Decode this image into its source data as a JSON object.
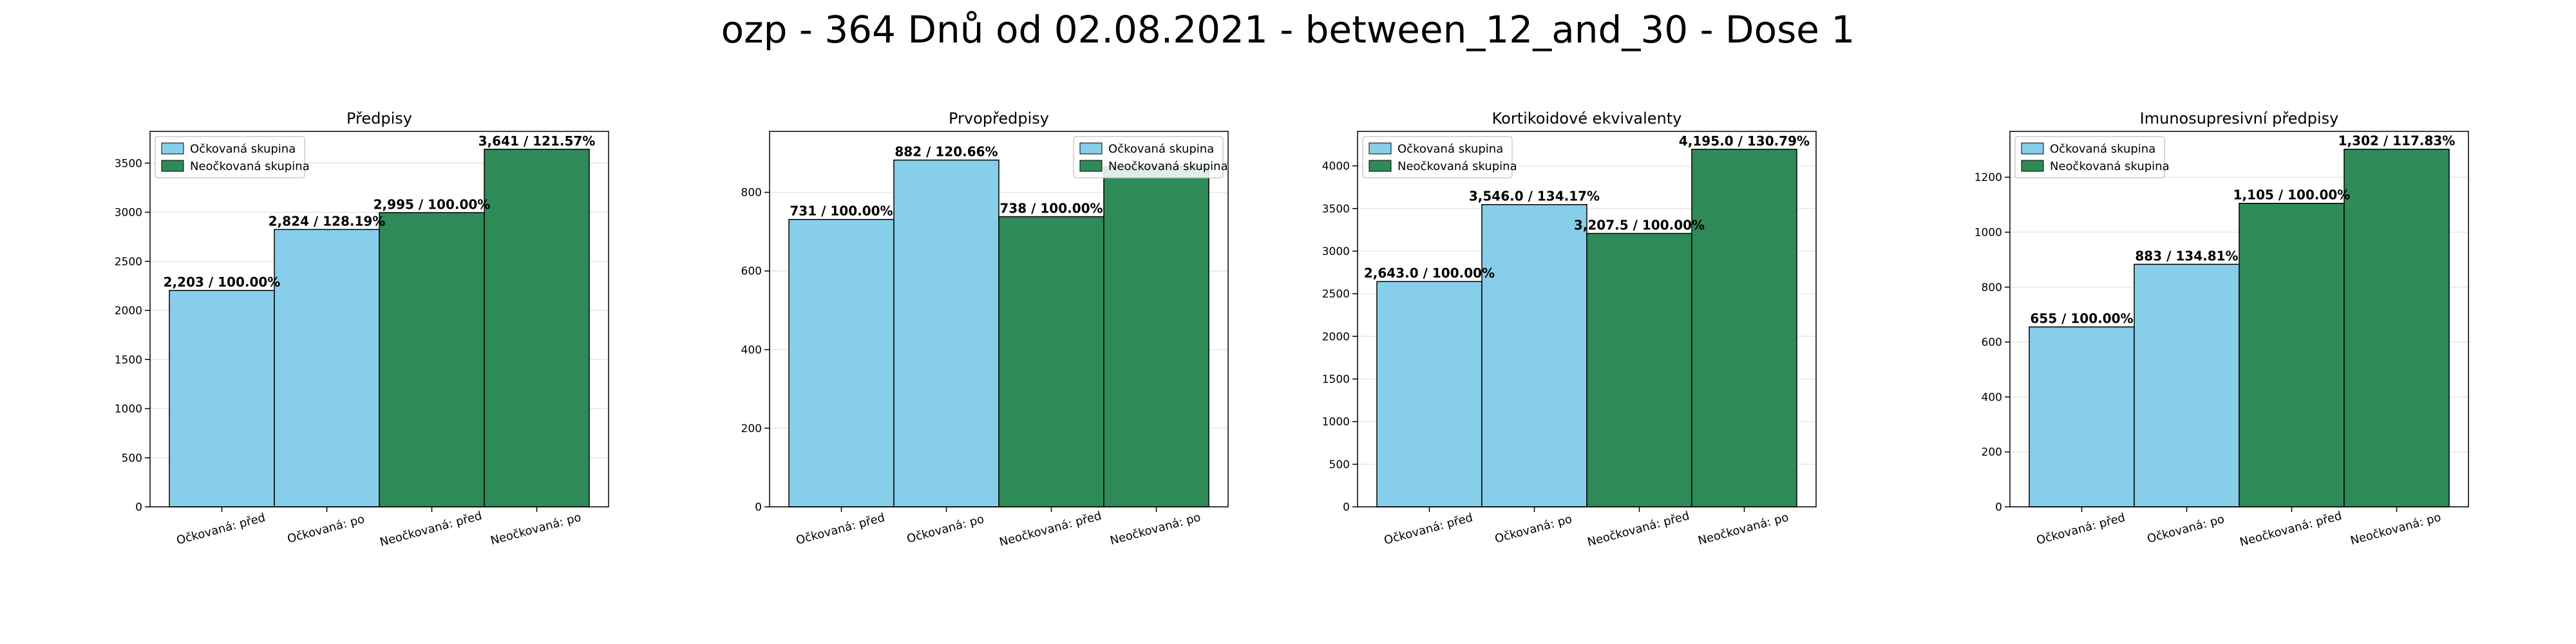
{
  "figure": {
    "title": "ozp - 364 Dnů od 02.08.2021 - between_12_and_30 - Dose 1"
  },
  "colors": {
    "vaccinated": "#87ceeb",
    "unvaccinated": "#2e8b57",
    "grid": "#e6e6e6"
  },
  "chart_data": [
    {
      "type": "bar",
      "title": "Předpisy",
      "categories": [
        "Očkovaná: před",
        "Očkovaná: po",
        "Neočkovaná: před",
        "Neočkovaná: po"
      ],
      "values": [
        2203,
        2824,
        2995,
        3641
      ],
      "labels": [
        "2,203 / 100.00%",
        "2,824 / 128.19%",
        "2,995 / 100.00%",
        "3,641 / 121.57%"
      ],
      "yticks": [
        0,
        500,
        1000,
        1500,
        2000,
        2500,
        3000,
        3500
      ],
      "ylim": [
        0,
        3823
      ],
      "legend": [
        "Očkovaná skupina",
        "Neočkovaná skupina"
      ],
      "legend_position": "top-left",
      "grid": true
    },
    {
      "type": "bar",
      "title": "Prvopředpisy",
      "categories": [
        "Očkovaná: před",
        "Očkovaná: po",
        "Neočkovaná: před",
        "Neočkovaná: po"
      ],
      "values": [
        731,
        882,
        738,
        866
      ],
      "labels": [
        "731 / 100.00%",
        "882 / 120.66%",
        "738 / 100.00%",
        ""
      ],
      "yticks": [
        0,
        200,
        400,
        600,
        800
      ],
      "ylim": [
        0,
        955
      ],
      "legend": [
        "Očkovaná skupina",
        "Neočkovaná skupina"
      ],
      "legend_position": "top-right",
      "grid": true
    },
    {
      "type": "bar",
      "title": "Kortikoidové ekvivalenty",
      "categories": [
        "Očkovaná: před",
        "Očkovaná: po",
        "Neočkovaná: před",
        "Neočkovaná: po"
      ],
      "values": [
        2643.0,
        3546.0,
        3207.5,
        4195.0
      ],
      "labels": [
        "2,643.0 / 100.00%",
        "3,546.0 / 134.17%",
        "3,207.5 / 100.00%",
        "4,195.0 / 130.79%"
      ],
      "yticks": [
        0,
        500,
        1000,
        1500,
        2000,
        2500,
        3000,
        3500,
        4000
      ],
      "ylim": [
        0,
        4405
      ],
      "legend": [
        "Očkovaná skupina",
        "Neočkovaná skupina"
      ],
      "legend_position": "top-left",
      "grid": true
    },
    {
      "type": "bar",
      "title": "Imunosupresivní předpisy",
      "categories": [
        "Očkovaná: před",
        "Očkovaná: po",
        "Neočkovaná: před",
        "Neočkovaná: po"
      ],
      "values": [
        655,
        883,
        1105,
        1302
      ],
      "labels": [
        "655 / 100.00%",
        "883 / 134.81%",
        "1,105 / 100.00%",
        "1,302 / 117.83%"
      ],
      "yticks": [
        0,
        200,
        400,
        600,
        800,
        1000,
        1200
      ],
      "ylim": [
        0,
        1367
      ],
      "legend": [
        "Očkovaná skupina",
        "Neočkovaná skupina"
      ],
      "legend_position": "top-left",
      "grid": true
    }
  ]
}
